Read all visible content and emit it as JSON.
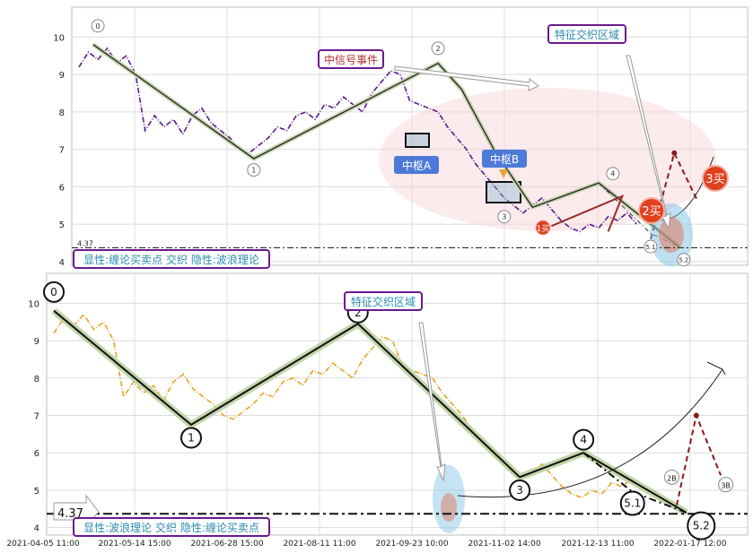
{
  "chart_data": [
    {
      "type": "line",
      "panel": "top",
      "ylim": [
        3.9,
        10.8
      ],
      "yticks": [
        4,
        5,
        6,
        7,
        8,
        9,
        10
      ],
      "grid": true,
      "price_series": [
        [
          0,
          9.2
        ],
        [
          2,
          9.6
        ],
        [
          4,
          9.4
        ],
        [
          6,
          9.7
        ],
        [
          8,
          9.3
        ],
        [
          10,
          9.5
        ],
        [
          12,
          9.0
        ],
        [
          14,
          7.5
        ],
        [
          16,
          7.9
        ],
        [
          18,
          7.6
        ],
        [
          20,
          7.8
        ],
        [
          22,
          7.4
        ],
        [
          24,
          7.9
        ],
        [
          26,
          8.1
        ],
        [
          28,
          7.7
        ],
        [
          30,
          7.5
        ],
        [
          32,
          7.3
        ],
        [
          34,
          7.0
        ],
        [
          36,
          6.9
        ],
        [
          38,
          7.1
        ],
        [
          40,
          7.3
        ],
        [
          42,
          7.6
        ],
        [
          44,
          7.5
        ],
        [
          46,
          7.9
        ],
        [
          48,
          8.0
        ],
        [
          50,
          7.8
        ],
        [
          52,
          8.2
        ],
        [
          54,
          8.1
        ],
        [
          56,
          8.4
        ],
        [
          58,
          8.2
        ],
        [
          60,
          8.0
        ],
        [
          62,
          8.5
        ],
        [
          64,
          8.8
        ],
        [
          66,
          9.1
        ],
        [
          68,
          9.0
        ],
        [
          70,
          8.3
        ],
        [
          72,
          8.2
        ],
        [
          74,
          8.1
        ],
        [
          76,
          8.0
        ],
        [
          78,
          7.6
        ],
        [
          80,
          7.3
        ],
        [
          82,
          7.0
        ],
        [
          84,
          6.6
        ],
        [
          86,
          6.3
        ],
        [
          88,
          6.0
        ],
        [
          90,
          5.7
        ],
        [
          92,
          5.5
        ],
        [
          94,
          5.3
        ],
        [
          96,
          5.5
        ],
        [
          98,
          5.7
        ],
        [
          100,
          5.4
        ],
        [
          102,
          5.1
        ],
        [
          104,
          4.9
        ],
        [
          106,
          4.8
        ],
        [
          108,
          5.0
        ],
        [
          110,
          4.9
        ],
        [
          112,
          5.2
        ],
        [
          114,
          5.1
        ],
        [
          116,
          5.3
        ],
        [
          118,
          5.0
        ]
      ],
      "wave_path": [
        [
          3,
          9.8
        ],
        [
          37,
          6.75
        ],
        [
          76,
          9.3
        ],
        [
          81,
          8.6
        ],
        [
          88,
          6.95
        ],
        [
          96,
          5.45
        ],
        [
          110,
          6.1
        ],
        [
          127,
          4.4
        ]
      ],
      "sub_path": [
        [
          110,
          6.1
        ],
        [
          121,
          4.75
        ],
        [
          127,
          4.4
        ]
      ],
      "buy_path": [
        [
          100,
          4.95
        ],
        [
          115,
          5.75
        ],
        [
          112,
          4.8
        ]
      ],
      "projection_path": [
        [
          121,
          4.6
        ],
        [
          126,
          6.9
        ],
        [
          131,
          5.6
        ]
      ],
      "wave_labels": [
        {
          "text": "0",
          "x": 4,
          "y": 10.3
        },
        {
          "text": "1",
          "x": 37,
          "y": 6.45
        },
        {
          "text": "2",
          "x": 76,
          "y": 9.7
        },
        {
          "text": "3",
          "x": 90,
          "y": 5.2
        },
        {
          "text": "4",
          "x": 113,
          "y": 6.35
        },
        {
          "text": "5.1",
          "x": 121,
          "y": 4.4
        },
        {
          "text": "5.2",
          "x": 128,
          "y": 4.05
        }
      ],
      "hline": {
        "value": 4.37,
        "label": "4.37"
      },
      "annotations": {
        "signal_event": "中信号事件",
        "feature_zone": "特征交织区域",
        "pivot_a": "中枢A",
        "pivot_b": "中枢B",
        "buy1": "1买",
        "buy2": "2买",
        "buy3": "3买",
        "caption": "显性:缠论买卖点 交织 隐性:波浪理论"
      }
    },
    {
      "type": "line",
      "panel": "bottom",
      "ylim": [
        3.8,
        10.8
      ],
      "yticks": [
        4,
        5,
        6,
        7,
        8,
        9,
        10
      ],
      "grid": true,
      "x_tick_labels": [
        "2021-04-05 11:00",
        "2021-05-14 15:00",
        "2021-06-28 15:00",
        "2021-08-11 11:00",
        "2021-09-23 10:00",
        "2021-11-02 14:00",
        "2021-12-13 11:00",
        "2022-01-17 12:00"
      ],
      "wave_path": [
        [
          0,
          9.8
        ],
        [
          28,
          6.75
        ],
        [
          62,
          9.45
        ],
        [
          95,
          5.35
        ],
        [
          108,
          6.0
        ],
        [
          129,
          4.4
        ]
      ],
      "sub_path": [
        [
          108,
          6.0
        ],
        [
          118,
          4.95
        ],
        [
          129,
          4.4
        ]
      ],
      "projection_path": [
        [
          127,
          4.6
        ],
        [
          131,
          7.0
        ],
        [
          136,
          5.4
        ]
      ],
      "wave_labels": [
        {
          "text": "0",
          "x": 0,
          "y": 10.3
        },
        {
          "text": "1",
          "x": 28,
          "y": 6.4
        },
        {
          "text": "2",
          "x": 62,
          "y": 9.75
        },
        {
          "text": "3",
          "x": 95,
          "y": 5.0
        },
        {
          "text": "4",
          "x": 108,
          "y": 6.35
        },
        {
          "text": "5.1",
          "x": 118,
          "y": 4.65
        },
        {
          "text": "5.2",
          "x": 132,
          "y": 4.05
        },
        {
          "text": "2B",
          "x": 126,
          "y": 5.35
        },
        {
          "text": "3B",
          "x": 137,
          "y": 5.15
        }
      ],
      "hline": {
        "value": 4.37,
        "label": "4.37"
      },
      "annotations": {
        "feature_zone": "特征交织区域",
        "caption": "显性:波浪理论 交织 隐性:缠论买卖点"
      }
    }
  ]
}
